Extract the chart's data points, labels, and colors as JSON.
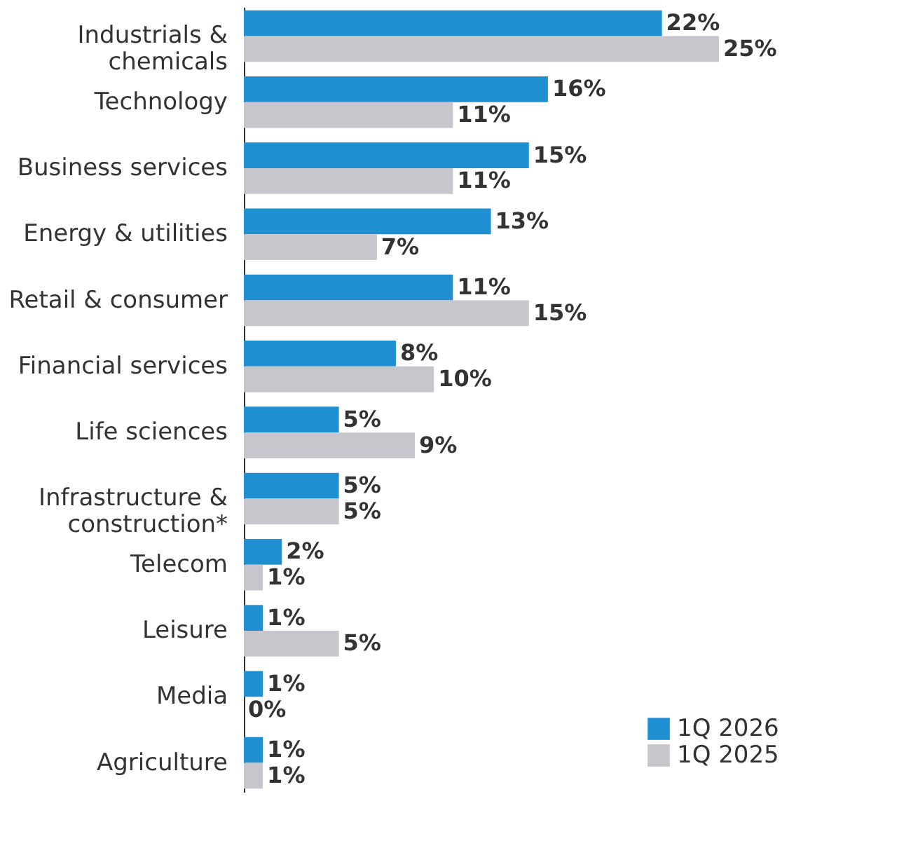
{
  "chart_data": {
    "type": "bar",
    "orientation": "horizontal",
    "legend": "bottom right",
    "grid": false,
    "categories": [
      "Industrials & chemicals",
      "Technology",
      "Business services",
      "Energy & utilities",
      "Retail & consumer",
      "Financial services",
      "Life sciences",
      "Infrastructure & construction*",
      "Telecom",
      "Leisure",
      "Media",
      "Agriculture"
    ],
    "series": [
      {
        "name": "1Q 2026",
        "color": "#1f8fd1",
        "values": [
          22,
          16,
          15,
          13,
          11,
          8,
          5,
          5,
          2,
          1,
          1,
          1
        ],
        "value_labels": [
          "22%",
          "16%",
          "15%",
          "13%",
          "11%",
          "8%",
          "5%",
          "5%",
          "2%",
          "1%",
          "1%",
          "1%"
        ]
      },
      {
        "name": "1Q 2025",
        "color": "#c6c6cc",
        "values": [
          25,
          11,
          11,
          7,
          15,
          10,
          9,
          5,
          1,
          5,
          0,
          1
        ],
        "value_labels": [
          "25%",
          "11%",
          "11%",
          "7%",
          "15%",
          "10%",
          "9%",
          "5%",
          "1%",
          "5%",
          "0%",
          "1%"
        ]
      }
    ]
  }
}
